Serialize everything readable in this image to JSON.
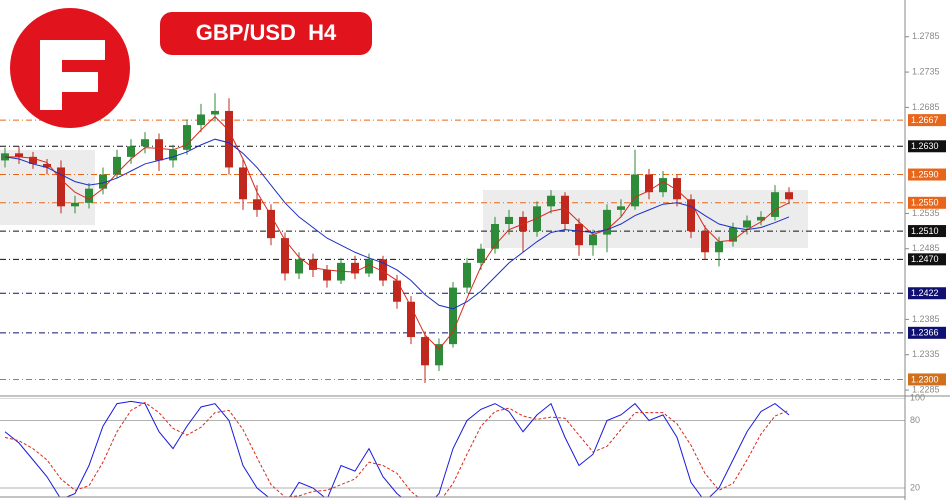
{
  "chart_data": [
    {
      "type": "candlestick",
      "title": "GBP/USD  H4",
      "open": [
        1.261,
        1.262,
        1.2615,
        1.2605,
        1.26,
        1.2545,
        1.255,
        1.257,
        1.259,
        1.2615,
        1.263,
        1.264,
        1.261,
        1.2625,
        1.266,
        1.2675,
        1.268,
        1.26,
        1.2555,
        1.254,
        1.25,
        1.245,
        1.247,
        1.2455,
        1.244,
        1.2465,
        1.245,
        1.247,
        1.244,
        1.241,
        1.236,
        1.232,
        1.235,
        1.243,
        1.2465,
        1.2485,
        1.252,
        1.253,
        1.251,
        1.2545,
        1.256,
        1.252,
        1.249,
        1.2505,
        1.254,
        1.2545,
        1.259,
        1.2565,
        1.2585,
        1.2555,
        1.251,
        1.248,
        1.2495,
        1.2515,
        1.2525,
        1.253,
        1.2565
      ],
      "high": [
        1.2628,
        1.263,
        1.2622,
        1.2612,
        1.261,
        1.256,
        1.2578,
        1.26,
        1.2625,
        1.264,
        1.265,
        1.2648,
        1.2632,
        1.2668,
        1.269,
        1.2705,
        1.2698,
        1.2612,
        1.2575,
        1.2548,
        1.2508,
        1.248,
        1.2478,
        1.2462,
        1.2472,
        1.2475,
        1.2478,
        1.2475,
        1.2448,
        1.2418,
        1.2368,
        1.2358,
        1.2438,
        1.2472,
        1.2492,
        1.253,
        1.254,
        1.2538,
        1.2552,
        1.2568,
        1.2565,
        1.2528,
        1.2512,
        1.2548,
        1.2555,
        1.2625,
        1.2598,
        1.2595,
        1.259,
        1.2562,
        1.2518,
        1.2502,
        1.2522,
        1.2532,
        1.2538,
        1.2575,
        1.2572
      ],
      "low": [
        1.26,
        1.2605,
        1.2598,
        1.259,
        1.2535,
        1.2535,
        1.2542,
        1.2562,
        1.2585,
        1.2605,
        1.262,
        1.2595,
        1.26,
        1.2618,
        1.265,
        1.2665,
        1.259,
        1.254,
        1.253,
        1.249,
        1.244,
        1.2442,
        1.2445,
        1.243,
        1.2435,
        1.2442,
        1.2445,
        1.2432,
        1.24,
        1.235,
        1.2295,
        1.2312,
        1.2345,
        1.2422,
        1.2455,
        1.2478,
        1.2505,
        1.248,
        1.2502,
        1.2535,
        1.2512,
        1.2475,
        1.2475,
        1.248,
        1.253,
        1.254,
        1.2555,
        1.2558,
        1.2545,
        1.25,
        1.247,
        1.246,
        1.2488,
        1.2505,
        1.2518,
        1.2525,
        1.2548
      ],
      "close": [
        1.262,
        1.2615,
        1.2605,
        1.26,
        1.2545,
        1.255,
        1.257,
        1.259,
        1.2615,
        1.263,
        1.264,
        1.261,
        1.2625,
        1.266,
        1.2675,
        1.268,
        1.26,
        1.2555,
        1.254,
        1.25,
        1.245,
        1.247,
        1.2455,
        1.244,
        1.2465,
        1.245,
        1.247,
        1.244,
        1.241,
        1.236,
        1.232,
        1.235,
        1.243,
        1.2465,
        1.2485,
        1.252,
        1.253,
        1.251,
        1.2545,
        1.256,
        1.252,
        1.249,
        1.2505,
        1.254,
        1.2545,
        1.259,
        1.2565,
        1.2585,
        1.2555,
        1.251,
        1.248,
        1.2495,
        1.2515,
        1.2525,
        1.253,
        1.2565,
        1.2555
      ],
      "up_color": "#2e8b3a",
      "down_color": "#c0281e",
      "series": [
        {
          "color": "#d62a1e",
          "values": [
            1.2615,
            1.2615,
            1.2613,
            1.2607,
            1.2583,
            1.2565,
            1.2555,
            1.257,
            1.2592,
            1.2612,
            1.2628,
            1.2627,
            1.2625,
            1.2632,
            1.2653,
            1.2672,
            1.2652,
            1.2612,
            1.2565,
            1.2532,
            1.2497,
            1.2473,
            1.2458,
            1.2455,
            1.2453,
            1.2452,
            1.2462,
            1.2453,
            1.244,
            1.2403,
            1.2363,
            1.2343,
            1.2367,
            1.2415,
            1.246,
            1.249,
            1.2512,
            1.252,
            1.2528,
            1.2538,
            1.2542,
            1.2523,
            1.2505,
            1.2512,
            1.253,
            1.2558,
            1.2567,
            1.258,
            1.2568,
            1.255,
            1.2515,
            1.2495,
            1.2497,
            1.2512,
            1.2523,
            1.254,
            1.255
          ]
        },
        {
          "color": "#1c2fc4",
          "values": [
            1.2615,
            1.2612,
            1.2605,
            1.26,
            1.259,
            1.258,
            1.2575,
            1.2578,
            1.2585,
            1.2595,
            1.2605,
            1.261,
            1.2615,
            1.2622,
            1.2632,
            1.264,
            1.2635,
            1.262,
            1.26,
            1.2575,
            1.255,
            1.253,
            1.2515,
            1.25,
            1.249,
            1.248,
            1.2472,
            1.2465,
            1.2455,
            1.244,
            1.242,
            1.2405,
            1.24,
            1.241,
            1.2425,
            1.2445,
            1.2465,
            1.248,
            1.2495,
            1.2508,
            1.2512,
            1.251,
            1.2508,
            1.2512,
            1.252,
            1.2532,
            1.254,
            1.2548,
            1.255,
            1.2545,
            1.2532,
            1.252,
            1.2515,
            1.2512,
            1.2515,
            1.2522,
            1.253
          ]
        }
      ],
      "ylim": [
        1.2278,
        1.2837
      ],
      "yticks": [
        1.2785,
        1.2735,
        1.2685,
        1.2535,
        1.2485,
        1.2385,
        1.2335,
        1.2285
      ],
      "levels": [
        {
          "value": 1.2667,
          "label": "1.2667",
          "color": "#e8661c"
        },
        {
          "value": 1.263,
          "label": "1.2630",
          "color": "#111111"
        },
        {
          "value": 1.259,
          "label": "1.2590",
          "color": "#e8661c"
        },
        {
          "value": 1.255,
          "label": "1.2550",
          "color": "#e8661c"
        },
        {
          "value": 1.251,
          "label": "1.2510",
          "color": "#111111"
        },
        {
          "value": 1.247,
          "label": "1.2470",
          "color": "#111111"
        },
        {
          "value": 1.2422,
          "label": "1.2422",
          "color": "#101070"
        },
        {
          "value": 1.2366,
          "label": "1.2366",
          "color": "#101070"
        },
        {
          "value": 1.23,
          "label": "1.2300",
          "color": "#d0701c"
        }
      ]
    },
    {
      "type": "line",
      "series": [
        {
          "color": "#1a1adb",
          "values": [
            70,
            60,
            45,
            30,
            10,
            15,
            40,
            75,
            95,
            97,
            95,
            70,
            55,
            75,
            92,
            95,
            80,
            40,
            20,
            10,
            5,
            25,
            20,
            10,
            40,
            35,
            55,
            30,
            15,
            5,
            2,
            15,
            55,
            80,
            90,
            95,
            88,
            70,
            85,
            95,
            65,
            40,
            50,
            80,
            85,
            95,
            80,
            85,
            65,
            25,
            8,
            20,
            45,
            70,
            88,
            95,
            85
          ]
        },
        {
          "color": "#d62a1e",
          "dashed": true,
          "values": [
            65,
            62,
            55,
            45,
            28,
            18,
            22,
            43,
            70,
            89,
            96,
            87,
            73,
            67,
            74,
            87,
            89,
            72,
            47,
            23,
            12,
            13,
            17,
            18,
            23,
            28,
            43,
            40,
            33,
            17,
            7,
            7,
            24,
            50,
            75,
            88,
            91,
            84,
            81,
            83,
            82,
            67,
            52,
            57,
            72,
            87,
            87,
            87,
            77,
            58,
            33,
            18,
            24,
            45,
            68,
            84,
            89
          ]
        }
      ],
      "ylim": [
        12,
        100
      ],
      "yticks": [
        100,
        80,
        20
      ]
    }
  ]
}
